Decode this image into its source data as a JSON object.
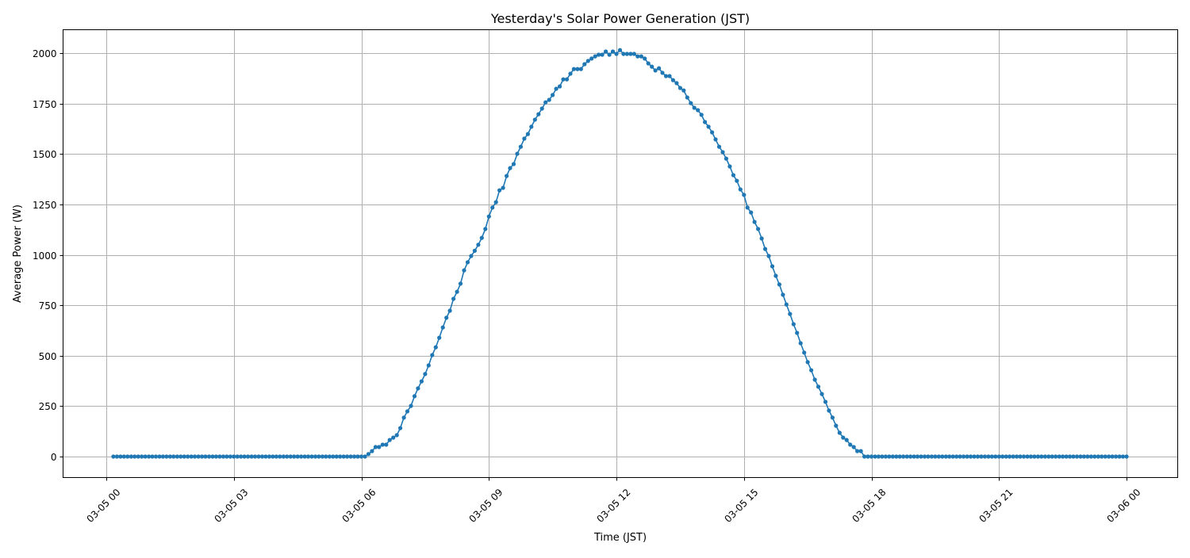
{
  "chart_data": {
    "type": "line",
    "title": "Yesterday's Solar Power Generation (JST)",
    "xlabel": "Time (JST)",
    "ylabel": "Average Power (W)",
    "grid": true,
    "marker": "circle",
    "color": "#1f77b4",
    "grid_color": "#b0b0b0",
    "xlim": [
      "03-04 22:25",
      "03-06 01:25"
    ],
    "ylim": [
      -100,
      2115
    ],
    "x_ticks": [
      "03-05 00",
      "03-05 03",
      "03-05 06",
      "03-05 09",
      "03-05 12",
      "03-05 15",
      "03-05 18",
      "03-05 21",
      "03-06 00"
    ],
    "y_ticks": [
      "0",
      "250",
      "500",
      "750",
      "1000",
      "1250",
      "1500",
      "1750",
      "2000"
    ],
    "x": [
      "03-05 00:10",
      "03-05 00:15",
      "03-05 00:20",
      "03-05 00:25",
      "03-05 00:30",
      "03-05 00:35",
      "03-05 00:40",
      "03-05 00:45",
      "03-05 00:50",
      "03-05 00:55",
      "03-05 01:00",
      "03-05 01:05",
      "03-05 01:10",
      "03-05 01:15",
      "03-05 01:20",
      "03-05 01:25",
      "03-05 01:30",
      "03-05 01:35",
      "03-05 01:40",
      "03-05 01:45",
      "03-05 01:50",
      "03-05 01:55",
      "03-05 02:00",
      "03-05 02:05",
      "03-05 02:10",
      "03-05 02:15",
      "03-05 02:20",
      "03-05 02:25",
      "03-05 02:30",
      "03-05 02:35",
      "03-05 02:40",
      "03-05 02:45",
      "03-05 02:50",
      "03-05 02:55",
      "03-05 03:00",
      "03-05 03:05",
      "03-05 03:10",
      "03-05 03:15",
      "03-05 03:20",
      "03-05 03:25",
      "03-05 03:30",
      "03-05 03:35",
      "03-05 03:40",
      "03-05 03:45",
      "03-05 03:50",
      "03-05 03:55",
      "03-05 04:00",
      "03-05 04:05",
      "03-05 04:10",
      "03-05 04:15",
      "03-05 04:20",
      "03-05 04:25",
      "03-05 04:30",
      "03-05 04:35",
      "03-05 04:40",
      "03-05 04:45",
      "03-05 04:50",
      "03-05 04:55",
      "03-05 05:00",
      "03-05 05:05",
      "03-05 05:10",
      "03-05 05:15",
      "03-05 05:20",
      "03-05 05:25",
      "03-05 05:30",
      "03-05 05:35",
      "03-05 05:40",
      "03-05 05:45",
      "03-05 05:50",
      "03-05 05:55",
      "03-05 06:00",
      "03-05 06:05",
      "03-05 06:10",
      "03-05 06:15",
      "03-05 06:20",
      "03-05 06:25",
      "03-05 06:30",
      "03-05 06:35",
      "03-05 06:40",
      "03-05 06:45",
      "03-05 06:50",
      "03-05 06:55",
      "03-05 07:00",
      "03-05 07:05",
      "03-05 07:10",
      "03-05 07:15",
      "03-05 07:20",
      "03-05 07:25",
      "03-05 07:30",
      "03-05 07:35",
      "03-05 07:40",
      "03-05 07:45",
      "03-05 07:50",
      "03-05 07:55",
      "03-05 08:00",
      "03-05 08:05",
      "03-05 08:10",
      "03-05 08:15",
      "03-05 08:20",
      "03-05 08:25",
      "03-05 08:30",
      "03-05 08:35",
      "03-05 08:40",
      "03-05 08:45",
      "03-05 08:50",
      "03-05 08:55",
      "03-05 09:00",
      "03-05 09:05",
      "03-05 09:10",
      "03-05 09:15",
      "03-05 09:20",
      "03-05 09:25",
      "03-05 09:30",
      "03-05 09:35",
      "03-05 09:40",
      "03-05 09:45",
      "03-05 09:50",
      "03-05 09:55",
      "03-05 10:00",
      "03-05 10:05",
      "03-05 10:10",
      "03-05 10:15",
      "03-05 10:20",
      "03-05 10:25",
      "03-05 10:30",
      "03-05 10:35",
      "03-05 10:40",
      "03-05 10:45",
      "03-05 10:50",
      "03-05 10:55",
      "03-05 11:00",
      "03-05 11:05",
      "03-05 11:10",
      "03-05 11:15",
      "03-05 11:20",
      "03-05 11:25",
      "03-05 11:30",
      "03-05 11:35",
      "03-05 11:40",
      "03-05 11:45",
      "03-05 11:50",
      "03-05 11:55",
      "03-05 12:00",
      "03-05 12:05",
      "03-05 12:10",
      "03-05 12:15",
      "03-05 12:20",
      "03-05 12:25",
      "03-05 12:30",
      "03-05 12:35",
      "03-05 12:40",
      "03-05 12:45",
      "03-05 12:50",
      "03-05 12:55",
      "03-05 13:00",
      "03-05 13:05",
      "03-05 13:10",
      "03-05 13:15",
      "03-05 13:20",
      "03-05 13:25",
      "03-05 13:30",
      "03-05 13:35",
      "03-05 13:40",
      "03-05 13:45",
      "03-05 13:50",
      "03-05 13:55",
      "03-05 14:00",
      "03-05 14:05",
      "03-05 14:10",
      "03-05 14:15",
      "03-05 14:20",
      "03-05 14:25",
      "03-05 14:30",
      "03-05 14:35",
      "03-05 14:40",
      "03-05 14:45",
      "03-05 14:50",
      "03-05 14:55",
      "03-05 15:00",
      "03-05 15:05",
      "03-05 15:10",
      "03-05 15:15",
      "03-05 15:20",
      "03-05 15:25",
      "03-05 15:30",
      "03-05 15:35",
      "03-05 15:40",
      "03-05 15:45",
      "03-05 15:50",
      "03-05 15:55",
      "03-05 16:00",
      "03-05 16:05",
      "03-05 16:10",
      "03-05 16:15",
      "03-05 16:20",
      "03-05 16:25",
      "03-05 16:30",
      "03-05 16:35",
      "03-05 16:40",
      "03-05 16:45",
      "03-05 16:50",
      "03-05 16:55",
      "03-05 17:00",
      "03-05 17:05",
      "03-05 17:10",
      "03-05 17:15",
      "03-05 17:20",
      "03-05 17:25",
      "03-05 17:30",
      "03-05 17:35",
      "03-05 17:40",
      "03-05 17:45",
      "03-05 17:50",
      "03-05 17:55",
      "03-05 18:00",
      "03-05 18:05",
      "03-05 18:10",
      "03-05 18:15",
      "03-05 18:20",
      "03-05 18:25",
      "03-05 18:30",
      "03-05 18:35",
      "03-05 18:40",
      "03-05 18:45",
      "03-05 18:50",
      "03-05 18:55",
      "03-05 19:00",
      "03-05 19:05",
      "03-05 19:10",
      "03-05 19:15",
      "03-05 19:20",
      "03-05 19:25",
      "03-05 19:30",
      "03-05 19:35",
      "03-05 19:40",
      "03-05 19:45",
      "03-05 19:50",
      "03-05 19:55",
      "03-05 20:00",
      "03-05 20:05",
      "03-05 20:10",
      "03-05 20:15",
      "03-05 20:20",
      "03-05 20:25",
      "03-05 20:30",
      "03-05 20:35",
      "03-05 20:40",
      "03-05 20:45",
      "03-05 20:50",
      "03-05 20:55",
      "03-05 21:00",
      "03-05 21:05",
      "03-05 21:10",
      "03-05 21:15",
      "03-05 21:20",
      "03-05 21:25",
      "03-05 21:30",
      "03-05 21:35",
      "03-05 21:40",
      "03-05 21:45",
      "03-05 21:50",
      "03-05 21:55",
      "03-05 22:00",
      "03-05 22:05",
      "03-05 22:10",
      "03-05 22:15",
      "03-05 22:20",
      "03-05 22:25",
      "03-05 22:30",
      "03-05 22:35",
      "03-05 22:40",
      "03-05 22:45",
      "03-05 22:50",
      "03-05 22:55",
      "03-05 23:00",
      "03-05 23:05",
      "03-05 23:10",
      "03-05 23:15",
      "03-05 23:20",
      "03-05 23:25",
      "03-05 23:30",
      "03-05 23:35",
      "03-05 23:40",
      "03-05 23:45",
      "03-05 23:50",
      "03-05 23:55",
      "03-06 00:00"
    ],
    "y": [
      0,
      0,
      0,
      0,
      0,
      0,
      0,
      0,
      0,
      0,
      0,
      0,
      0,
      0,
      0,
      0,
      0,
      0,
      0,
      0,
      0,
      0,
      0,
      0,
      0,
      0,
      0,
      0,
      0,
      0,
      0,
      0,
      0,
      0,
      0,
      0,
      0,
      0,
      0,
      0,
      0,
      0,
      0,
      0,
      0,
      0,
      0,
      0,
      0,
      0,
      0,
      0,
      0,
      0,
      0,
      0,
      0,
      0,
      0,
      0,
      0,
      0,
      0,
      0,
      0,
      0,
      0,
      0,
      0,
      0,
      0,
      0,
      12,
      27,
      47,
      47,
      59,
      59,
      82,
      94,
      106,
      141,
      193,
      224,
      251,
      299,
      338,
      373,
      409,
      452,
      503,
      542,
      589,
      640,
      688,
      723,
      782,
      817,
      857,
      923,
      963,
      994,
      1020,
      1050,
      1084,
      1128,
      1190,
      1234,
      1261,
      1320,
      1332,
      1391,
      1430,
      1450,
      1501,
      1536,
      1576,
      1599,
      1635,
      1670,
      1697,
      1725,
      1756,
      1768,
      1792,
      1823,
      1835,
      1870,
      1870,
      1898,
      1921,
      1921,
      1921,
      1945,
      1961,
      1973,
      1984,
      1992,
      1992,
      2008,
      1992,
      2008,
      1996,
      2015,
      1996,
      1996,
      1996,
      1996,
      1984,
      1984,
      1973,
      1949,
      1933,
      1914,
      1925,
      1902,
      1886,
      1886,
      1866,
      1851,
      1827,
      1815,
      1780,
      1752,
      1729,
      1717,
      1694,
      1658,
      1635,
      1607,
      1572,
      1536,
      1509,
      1477,
      1438,
      1395,
      1367,
      1324,
      1297,
      1234,
      1210,
      1163,
      1128,
      1081,
      1029,
      994,
      943,
      896,
      853,
      802,
      754,
      707,
      656,
      613,
      562,
      515,
      468,
      428,
      381,
      346,
      310,
      271,
      228,
      193,
      153,
      118,
      94,
      82,
      59,
      47,
      27,
      27,
      0,
      0,
      0,
      0,
      0,
      0,
      0,
      0,
      0,
      0,
      0,
      0,
      0,
      0,
      0,
      0,
      0,
      0,
      0,
      0,
      0,
      0,
      0,
      0,
      0,
      0,
      0,
      0,
      0,
      0,
      0,
      0,
      0,
      0,
      0,
      0,
      0,
      0,
      0,
      0,
      0,
      0,
      0,
      0,
      0,
      0,
      0,
      0,
      0,
      0,
      0,
      0,
      0,
      0,
      0,
      0,
      0,
      0,
      0,
      0,
      0,
      0,
      0,
      0,
      0,
      0,
      0,
      0,
      0,
      0,
      0,
      0,
      0,
      0,
      0
    ]
  }
}
